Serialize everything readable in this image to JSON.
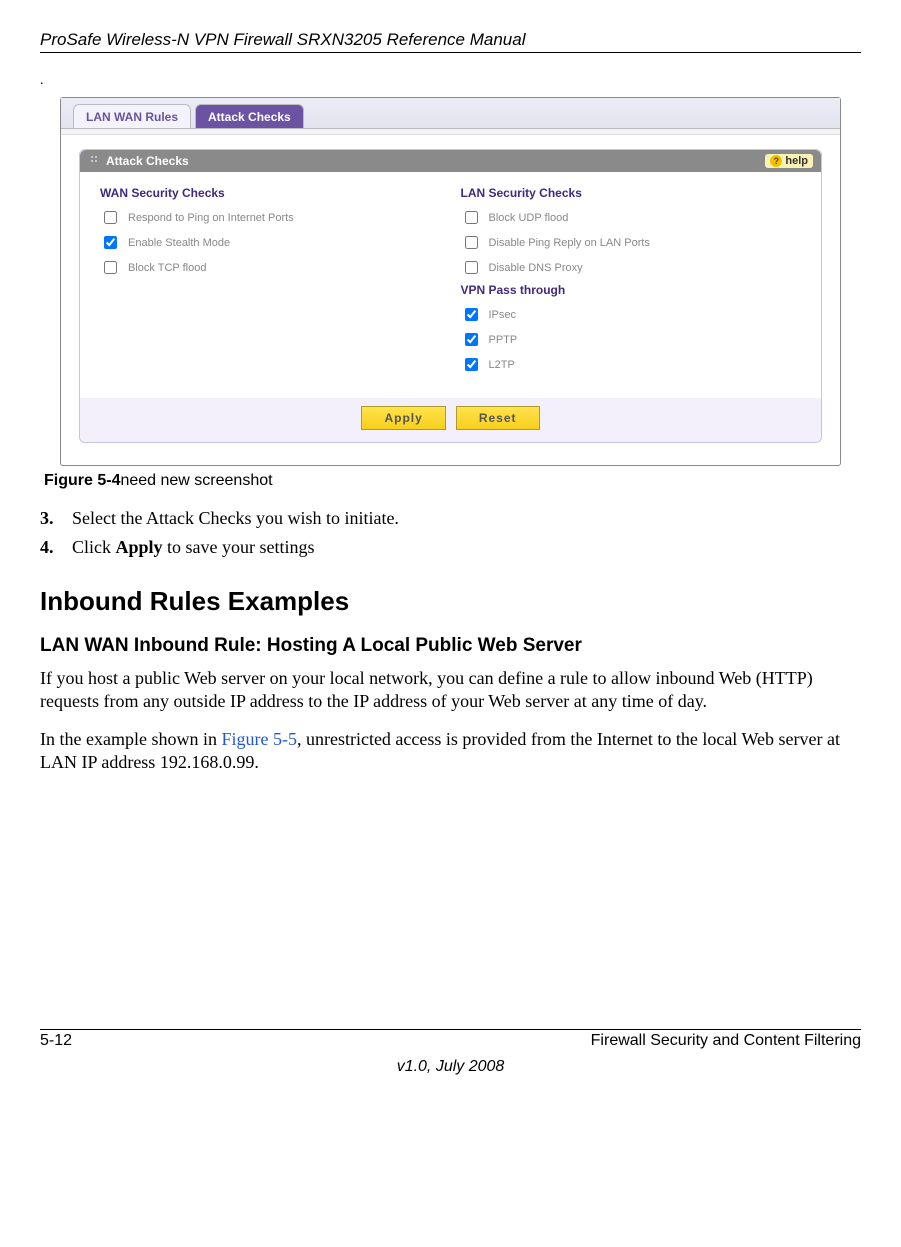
{
  "header": {
    "doc_title": "ProSafe Wireless-N VPN Firewall SRXN3205 Reference Manual"
  },
  "figure": {
    "tabs": {
      "inactive": "LAN WAN Rules",
      "active": "Attack Checks"
    },
    "panel_title": "Attack Checks",
    "help_label": "help",
    "wan": {
      "heading": "WAN Security Checks",
      "opt1": {
        "label": "Respond to Ping on Internet Ports",
        "checked": false
      },
      "opt2": {
        "label": "Enable Stealth Mode",
        "checked": true
      },
      "opt3": {
        "label": "Block TCP flood",
        "checked": false
      }
    },
    "lan": {
      "heading": "LAN Security Checks",
      "opt1": {
        "label": "Block UDP flood",
        "checked": false
      },
      "opt2": {
        "label": "Disable Ping Reply on LAN Ports",
        "checked": false
      },
      "opt3": {
        "label": "Disable DNS Proxy",
        "checked": false
      }
    },
    "vpn": {
      "heading": "VPN Pass through",
      "opt1": {
        "label": "IPsec",
        "checked": true
      },
      "opt2": {
        "label": "PPTP",
        "checked": true
      },
      "opt3": {
        "label": "L2TP",
        "checked": true
      }
    },
    "buttons": {
      "apply": "Apply",
      "reset": "Reset"
    },
    "caption_bold": "Figure 5-4",
    "caption_rest": "need new screenshot"
  },
  "steps": {
    "s3_num": "3.",
    "s3_text": "Select the Attack Checks you wish to initiate.",
    "s4_num": "4.",
    "s4_pre": "Click ",
    "s4_bold": "Apply",
    "s4_post": " to save your settings"
  },
  "headings": {
    "h2": "Inbound Rules Examples",
    "h3": "LAN WAN Inbound Rule: Hosting A Local Public Web Server"
  },
  "paragraphs": {
    "p1": "If you host a public Web server on your local network, you can define a rule to allow inbound Web (HTTP) requests from any outside IP address to the IP address of your Web server at any time of day.",
    "p2_pre": "In the example shown in ",
    "p2_link": "Figure 5-5",
    "p2_post": ", unrestricted access is provided from the Internet to the local Web server at LAN IP address 192.168.0.99."
  },
  "footer": {
    "page_num": "5-12",
    "section": "Firewall Security and Content Filtering",
    "version": "v1.0, July 2008"
  },
  "colors": {
    "tab_active_bg": "#6b52a3",
    "link_color": "#2356d6",
    "button_bg": "#f8cf1c"
  }
}
